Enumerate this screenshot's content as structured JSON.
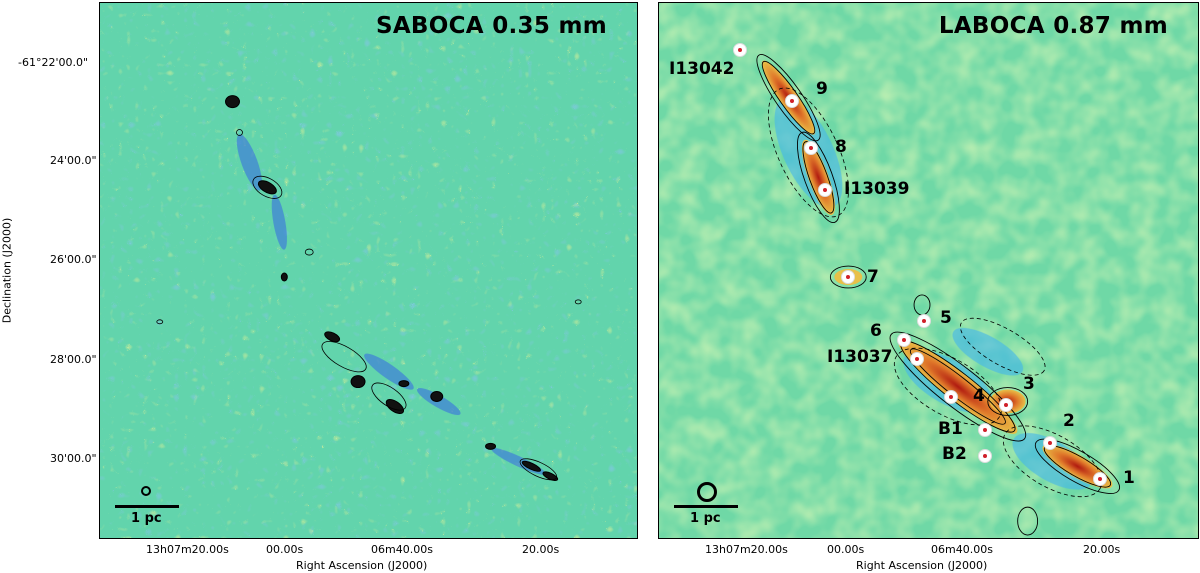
{
  "panels": {
    "left": {
      "title": "SABOCA 0.35 mm",
      "scale_label": "1 pc"
    },
    "right": {
      "title": "LABOCA 0.87 mm",
      "scale_label": "1 pc",
      "labels": {
        "I13042": "I13042",
        "n9": "9",
        "n8": "8",
        "I13039": "I13039",
        "n7": "7",
        "n5": "5",
        "n6": "6",
        "I13037": "I13037",
        "n3": "3",
        "n4": "4",
        "n2": "2",
        "B1": "B1",
        "B2": "B2",
        "n1": "1"
      }
    }
  },
  "axes": {
    "ylabel": "Declination (J2000)",
    "xlabel": "Right Ascension (J2000)",
    "yticks": [
      "-61°22'00.0\"",
      "24'00.0\"",
      "26'00.0\"",
      "28'00.0\"",
      "30'00.0\""
    ],
    "xticks_left": [
      "13h07m20.00s",
      "00.00s",
      "06m40.00s",
      "20.00s"
    ],
    "xticks_right": [
      "13h07m20.00s",
      "00.00s",
      "06m40.00s",
      "20.00s"
    ]
  },
  "colors": {
    "background_map": "#62d4ac",
    "noise_blue": "#3f8fe0",
    "noise_yellow": "#d8e84a",
    "emission_orange": "#e0782a",
    "emission_red": "#b01a10",
    "contour": "#000000"
  }
}
